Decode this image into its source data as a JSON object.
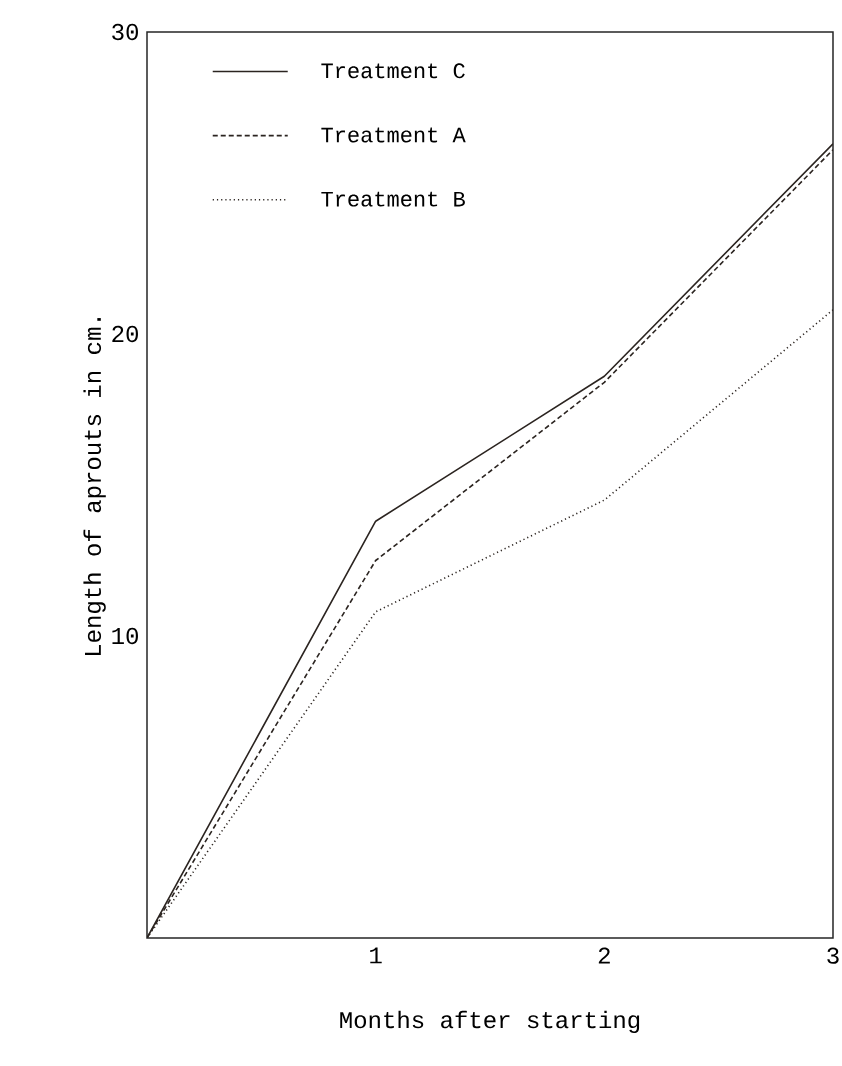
{
  "chart_data": {
    "type": "line",
    "xlabel": "Months after starting",
    "ylabel": "Length of aprouts in cm.",
    "x": [
      0,
      1,
      2,
      3
    ],
    "series": [
      {
        "name": "Treatment C",
        "color": "#2b2420",
        "line_style": "solid",
        "values": [
          0,
          13.8,
          18.6,
          26.3
        ]
      },
      {
        "name": "Treatment A",
        "color": "#2b2420",
        "line_style": "dashed",
        "values": [
          0,
          12.5,
          18.4,
          26.1
        ]
      },
      {
        "name": "Treatment B",
        "color": "#2b2420",
        "line_style": "dotted",
        "values": [
          0,
          10.8,
          14.5,
          20.8
        ]
      }
    ],
    "xlim": [
      0,
      3
    ],
    "ylim": [
      0,
      30
    ],
    "xticks": [
      1,
      2,
      3
    ],
    "yticks": [
      10,
      20,
      30
    ],
    "legend": "top left",
    "marker": "none"
  }
}
